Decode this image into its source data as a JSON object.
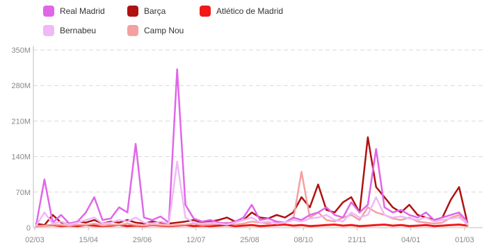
{
  "chart_data": {
    "type": "line",
    "title": "",
    "xlabel": "",
    "ylabel": "",
    "ylim": [
      0,
      350
    ],
    "y_unit_suffix": "M",
    "y_ticks": [
      0,
      70,
      140,
      210,
      280,
      350
    ],
    "y_tick_labels": [
      "0",
      "70M",
      "140M",
      "210M",
      "280M",
      "350M"
    ],
    "x_tick_labels": [
      "02/03",
      "15/04",
      "29/06",
      "12/07",
      "25/08",
      "08/10",
      "21/11",
      "04/01",
      "01/03"
    ],
    "grid": true,
    "legend_position": "top-left",
    "x": [
      "02/03",
      "09/03",
      "16/03",
      "23/03",
      "30/03",
      "06/04",
      "13/04",
      "20/04",
      "27/04",
      "04/05",
      "11/05",
      "18/05",
      "25/05",
      "01/06",
      "08/06",
      "15/06",
      "22/06",
      "29/06",
      "06/07",
      "13/07",
      "20/07",
      "27/07",
      "03/08",
      "10/08",
      "17/08",
      "24/08",
      "31/08",
      "07/09",
      "14/09",
      "21/09",
      "28/09",
      "05/10",
      "12/10",
      "19/10",
      "26/10",
      "02/11",
      "09/11",
      "16/11",
      "23/11",
      "30/11",
      "07/12",
      "14/12",
      "21/12",
      "28/12",
      "04/01",
      "11/01",
      "18/01",
      "25/01",
      "01/02",
      "08/02",
      "15/02",
      "22/02",
      "01/03"
    ],
    "series": [
      {
        "name": "Real Madrid",
        "color": "#e066e8",
        "values": [
          5,
          95,
          10,
          25,
          8,
          12,
          30,
          60,
          15,
          18,
          40,
          30,
          165,
          20,
          15,
          22,
          10,
          312,
          45,
          18,
          12,
          15,
          10,
          8,
          12,
          20,
          45,
          15,
          18,
          12,
          10,
          20,
          15,
          25,
          30,
          40,
          25,
          20,
          50,
          30,
          45,
          155,
          40,
          30,
          35,
          25,
          20,
          30,
          15,
          20,
          25,
          30,
          12
        ]
      },
      {
        "name": "Barça",
        "color": "#b01010",
        "values": [
          8,
          5,
          25,
          10,
          8,
          12,
          10,
          15,
          8,
          12,
          10,
          15,
          10,
          8,
          12,
          10,
          8,
          10,
          12,
          15,
          10,
          12,
          15,
          20,
          12,
          15,
          30,
          20,
          18,
          25,
          20,
          30,
          60,
          40,
          85,
          35,
          30,
          50,
          60,
          30,
          178,
          80,
          60,
          40,
          30,
          45,
          25,
          20,
          15,
          20,
          55,
          80,
          10
        ]
      },
      {
        "name": "Atlético de Madrid",
        "color": "#f01818",
        "values": [
          3,
          4,
          5,
          3,
          4,
          3,
          5,
          4,
          3,
          4,
          5,
          3,
          4,
          3,
          5,
          4,
          3,
          4,
          5,
          3,
          4,
          3,
          4,
          5,
          3,
          4,
          5,
          3,
          4,
          5,
          6,
          4,
          5,
          3,
          4,
          5,
          6,
          4,
          5,
          3,
          4,
          5,
          6,
          4,
          5,
          3,
          4,
          5,
          3,
          4,
          5,
          6,
          4
        ]
      },
      {
        "name": "Bernabeu",
        "color": "#f0b8f8",
        "values": [
          4,
          30,
          8,
          12,
          6,
          10,
          15,
          20,
          8,
          10,
          15,
          12,
          20,
          10,
          8,
          12,
          8,
          130,
          20,
          10,
          8,
          10,
          8,
          6,
          10,
          15,
          20,
          10,
          12,
          8,
          10,
          15,
          12,
          18,
          20,
          25,
          15,
          12,
          30,
          20,
          25,
          60,
          25,
          20,
          22,
          18,
          15,
          20,
          12,
          15,
          18,
          20,
          8
        ]
      },
      {
        "name": "Camp Nou",
        "color": "#f4a0a0",
        "values": [
          3,
          4,
          6,
          5,
          4,
          6,
          5,
          8,
          4,
          6,
          5,
          8,
          5,
          4,
          6,
          5,
          4,
          5,
          6,
          8,
          5,
          6,
          8,
          10,
          6,
          8,
          12,
          10,
          8,
          12,
          10,
          15,
          110,
          20,
          30,
          15,
          12,
          20,
          25,
          15,
          40,
          30,
          25,
          18,
          15,
          20,
          12,
          10,
          8,
          10,
          20,
          25,
          5
        ]
      }
    ]
  }
}
